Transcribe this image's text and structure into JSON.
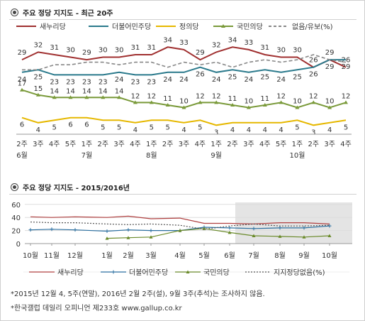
{
  "chart1": {
    "title": "주요 정당 지지도 - 최근 20주",
    "legend": [
      {
        "name": "새누리당",
        "color": "#a03030",
        "style": "solid"
      },
      {
        "name": "더불어민주당",
        "color": "#2b7a8c",
        "style": "solid"
      },
      {
        "name": "정의당",
        "color": "#e6b800",
        "style": "solid"
      },
      {
        "name": "국민의당",
        "color": "#7a9a3a",
        "style": "solid"
      },
      {
        "name": "없음/유보(%)",
        "color": "#888888",
        "style": "dashed"
      }
    ],
    "week_labels": [
      "2주",
      "3주",
      "4주",
      "5주",
      "1주",
      "2주",
      "3주",
      "4주",
      "1주",
      "2주",
      "3주",
      "4주",
      "1주",
      "2주",
      "3주",
      "4주",
      "5주",
      "1주",
      "2주",
      "3주",
      "4주"
    ],
    "month_labels": [
      {
        "index": 0,
        "label": "6월"
      },
      {
        "index": 4,
        "label": "7월"
      },
      {
        "index": 8,
        "label": "8월"
      },
      {
        "index": 12,
        "label": "9월"
      },
      {
        "index": 17,
        "label": "10월"
      }
    ]
  },
  "chart2": {
    "title": "주요 정당 지지도 - 2015/2016년",
    "y_ticks": [
      "60",
      "40",
      "20",
      "0"
    ],
    "month_labels": [
      "10월",
      "11월",
      "12월",
      "1월",
      "2월",
      "3월",
      "4월",
      "5월",
      "6월",
      "7월",
      "8월",
      "9월",
      "10월"
    ],
    "legend": [
      {
        "name": "새누리당",
        "color": "#b04040"
      },
      {
        "name": "더불어민주당",
        "color": "#2b6fa0"
      },
      {
        "name": "국민의당",
        "color": "#6a8a2a"
      },
      {
        "name": "지지정당없음(%)",
        "color": "#555555"
      }
    ]
  },
  "notes": [
    "*2015년 12월 4, 5주(연말), 2016년 2월 2주(설), 9월 3주(추석)는 조사하지 않음.",
    "*한국갤럽 데일리 오피니언 제233호 www.gallup.co.kr"
  ],
  "chart_data": [
    {
      "type": "line",
      "title": "주요 정당 지지도 - 최근 20주",
      "categories": [
        "6월 2주",
        "3주",
        "4주",
        "5주",
        "7월 1주",
        "2주",
        "3주",
        "4주",
        "8월 1주",
        "2주",
        "3주",
        "4주",
        "9월 1주",
        "2주",
        "3주",
        "4주",
        "5주",
        "10월 1주",
        "2주",
        "3주",
        "4주"
      ],
      "series": [
        {
          "name": "새누리당",
          "color": "#a03030",
          "values": [
            29,
            32,
            31,
            30,
            29,
            30,
            30,
            31,
            31,
            34,
            33,
            29,
            32,
            34,
            33,
            31,
            30,
            30,
            26,
            29,
            26
          ]
        },
        {
          "name": "더불어민주당",
          "color": "#2b7a8c",
          "values": [
            24,
            25,
            23,
            23,
            23,
            23,
            24,
            23,
            23,
            24,
            24,
            26,
            24,
            25,
            24,
            25,
            24,
            25,
            26,
            29,
            29
          ]
        },
        {
          "name": "정의당",
          "color": "#e6b800",
          "values": [
            6,
            4,
            5,
            6,
            6,
            5,
            5,
            4,
            5,
            5,
            4,
            5,
            3,
            4,
            4,
            4,
            4,
            5,
            3,
            4,
            5
          ]
        },
        {
          "name": "국민의당",
          "color": "#7a9a3a",
          "values": [
            17,
            15,
            14,
            14,
            14,
            14,
            14,
            12,
            12,
            11,
            10,
            12,
            12,
            11,
            10,
            11,
            12,
            10,
            12,
            10,
            12
          ]
        },
        {
          "name": "없음/유보(%)",
          "color": "#888888",
          "values": [
            25,
            25,
            27,
            27,
            28,
            28,
            27,
            28,
            28,
            26,
            28,
            27,
            28,
            26,
            28,
            29,
            28,
            29,
            31,
            29,
            28
          ]
        }
      ]
    },
    {
      "type": "line",
      "title": "주요 정당 지지도 - 2015/2016년",
      "categories": [
        "10월",
        "11월",
        "12월",
        "1월",
        "2월",
        "3월",
        "4월",
        "5월",
        "6월",
        "7월",
        "8월",
        "9월",
        "10월"
      ],
      "ylim": [
        0,
        60
      ],
      "series": [
        {
          "name": "새누리당",
          "color": "#b04040",
          "values": [
            41,
            40,
            41,
            40,
            42,
            38,
            39,
            31,
            31,
            30,
            32,
            32,
            30
          ]
        },
        {
          "name": "더불어민주당",
          "color": "#2b6fa0",
          "values": [
            21,
            22,
            21,
            19,
            21,
            20,
            20,
            25,
            24,
            23,
            24,
            24,
            27
          ]
        },
        {
          "name": "국민의당",
          "color": "#6a8a2a",
          "values": [
            null,
            null,
            null,
            8,
            9,
            10,
            20,
            23,
            17,
            12,
            11,
            10,
            12
          ]
        },
        {
          "name": "지지정당없음(%)",
          "color": "#555555",
          "values": [
            33,
            32,
            32,
            30,
            29,
            30,
            28,
            22,
            27,
            30,
            27,
            27,
            28
          ]
        }
      ]
    }
  ]
}
